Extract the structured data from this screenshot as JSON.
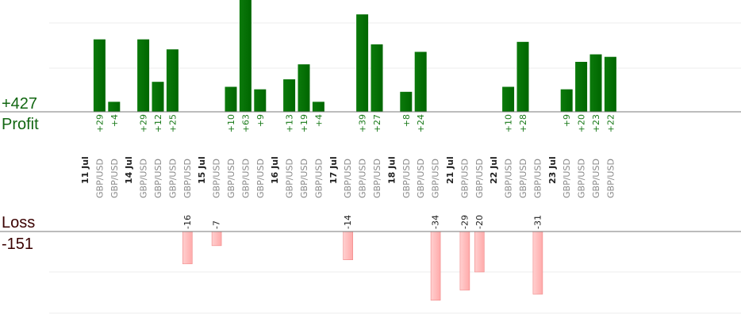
{
  "summary": {
    "profit_total": "+427",
    "profit_label": "Profit",
    "loss_label": "Loss",
    "loss_total": "-151"
  },
  "chart_data": {
    "type": "bar",
    "pair_label": "GBP/USD",
    "profit_color": "#006600",
    "loss_color": "#ffaaaa",
    "days": [
      {
        "label": "11 Jul",
        "trades": [
          29,
          4
        ]
      },
      {
        "label": "14 Jul",
        "trades": [
          29,
          12,
          25,
          -16
        ]
      },
      {
        "label": "15 Jul",
        "trades": [
          -7,
          10,
          63,
          9
        ]
      },
      {
        "label": "16 Jul",
        "trades": [
          13,
          19,
          4
        ]
      },
      {
        "label": "17 Jul",
        "trades": [
          -14,
          39,
          27
        ]
      },
      {
        "label": "18 Jul",
        "trades": [
          8,
          24,
          -34
        ]
      },
      {
        "label": "21 Jul",
        "trades": [
          -29,
          -20
        ]
      },
      {
        "label": "22 Jul",
        "trades": [
          10,
          28,
          -31
        ]
      },
      {
        "label": "23 Jul",
        "trades": [
          9,
          20,
          23,
          22
        ]
      }
    ]
  }
}
